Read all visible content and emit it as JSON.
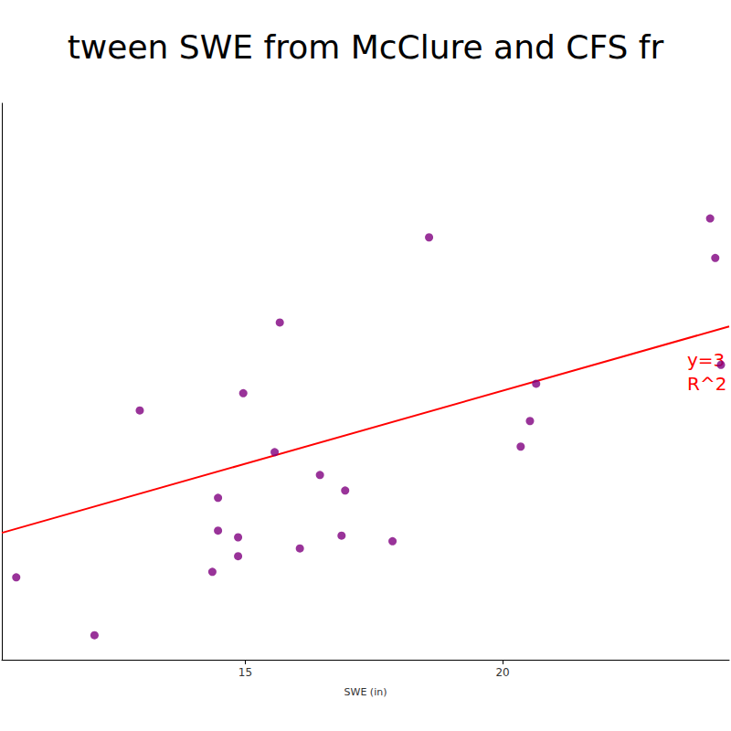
{
  "chart_data": {
    "type": "scatter",
    "title": "tween SWE from McClure and CFS fr",
    "x_label": "SWE (in)",
    "x": [
      10.55,
      12.07,
      12.95,
      14.36,
      14.47,
      14.47,
      14.86,
      14.86,
      14.96,
      15.57,
      15.67,
      16.06,
      16.45,
      16.87,
      16.94,
      17.86,
      18.57,
      20.35,
      20.53,
      20.65,
      24.03,
      24.13,
      24.24
    ],
    "values": [
      14.8,
      4.4,
      44.8,
      15.8,
      29.1,
      23.2,
      22.0,
      18.6,
      47.9,
      37.3,
      60.6,
      20.0,
      33.2,
      22.3,
      30.4,
      21.3,
      75.9,
      38.3,
      42.9,
      49.6,
      79.3,
      72.2,
      53.0
    ],
    "color": "#800080",
    "marker": "circle",
    "xlim": [
      10.27,
      24.4
    ],
    "xticks": [
      15,
      20
    ],
    "ylim": [
      0,
      100
    ],
    "yticks": [],
    "tick_labels": "x",
    "grid": false,
    "fit": {
      "x": [
        10.27,
        24.4
      ],
      "y": [
        22.8,
        59.9
      ],
      "color": "#ff0000",
      "line_style": "solid"
    },
    "annotations": [
      "y=3",
      "R^2"
    ]
  }
}
